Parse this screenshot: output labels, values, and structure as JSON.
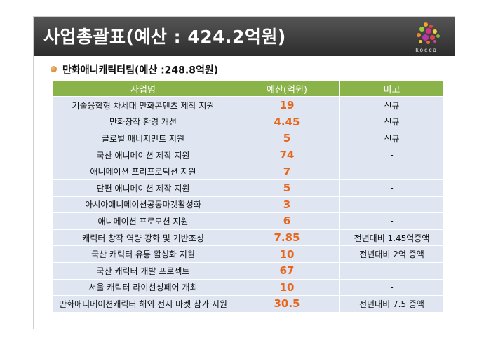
{
  "slide": {
    "title": "사업총괄표(예산 : 424.2억원)",
    "logo_text": "kocca",
    "subtitle": "만화애니캐릭터팀(예산 :248.8억원)"
  },
  "table": {
    "headers": [
      "사업명",
      "예산(억원)",
      "비고"
    ],
    "rows": [
      [
        "기술융합형 차세대 만화콘텐츠 제작 지원",
        "19",
        "신규"
      ],
      [
        "만화창작 환경 개선",
        "4.45",
        "신규"
      ],
      [
        "글로벌 매니지먼트 지원",
        "5",
        "신규"
      ],
      [
        "국산 애니메이션 제작 지원",
        "74",
        "-"
      ],
      [
        "애니메이션 프리프로덕션 지원",
        "7",
        "-"
      ],
      [
        "단편 애니메이션 제작 지원",
        "5",
        "-"
      ],
      [
        "아시아애니메이션공동마켓활성화",
        "3",
        "-"
      ],
      [
        "애니메이션 프로모션 지원",
        "6",
        "-"
      ],
      [
        "캐릭터 창작 역량 강화 및 기반조성",
        "7.85",
        "전년대비 1.45억증액"
      ],
      [
        "국산 캐릭터 유통 활성화 지원",
        "10",
        "전년대비 2억 증액"
      ],
      [
        "국산 캐릭터 개발 프로젝트",
        "67",
        "-"
      ],
      [
        "서울 캐릭터 라이선싱페어 개최",
        "10",
        "-"
      ],
      [
        "만화애니메이션캐릭터 해외 전시 마켓 참가 지원",
        "30.5",
        "전년대비 7.5 증액"
      ]
    ]
  },
  "colors": {
    "header_bar": "#3a3a3a",
    "table_header": "#8ab34a",
    "row_bg": "#dfe5f1",
    "budget_text": "#e8661c"
  }
}
